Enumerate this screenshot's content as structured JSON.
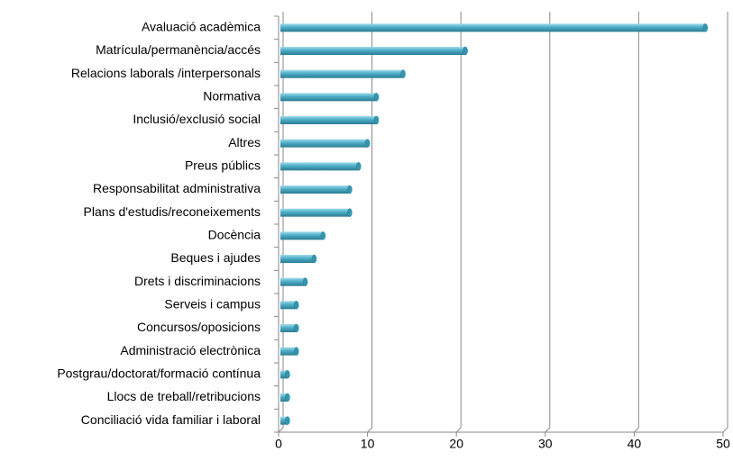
{
  "chart_data": {
    "type": "bar",
    "orientation": "horizontal",
    "categories": [
      "Avaluació acadèmica",
      "Matrícula/permanència/accés",
      "Relacions laborals /interpersonals",
      "Normativa",
      "Inclusió/exclusió social",
      "Altres",
      "Preus públics",
      "Responsabilitat administrativa",
      "Plans d'estudis/reconeixements",
      "Docència",
      "Beques i ajudes",
      "Drets i discriminacions",
      "Serveis i campus",
      "Concursos/oposicions",
      "Administració electrònica",
      "Postgrau/doctorat/formació contínua",
      "Llocs de treball/retribucions",
      "Conciliació vida familiar i laboral"
    ],
    "values": [
      48,
      21,
      14,
      11,
      11,
      10,
      9,
      8,
      8,
      5,
      4,
      3,
      2,
      2,
      2,
      1,
      1,
      1
    ],
    "color": "#4bacc6",
    "xlim": [
      0,
      50
    ],
    "xticks": [
      0,
      10,
      20,
      30,
      40,
      50
    ],
    "grid": true
  }
}
